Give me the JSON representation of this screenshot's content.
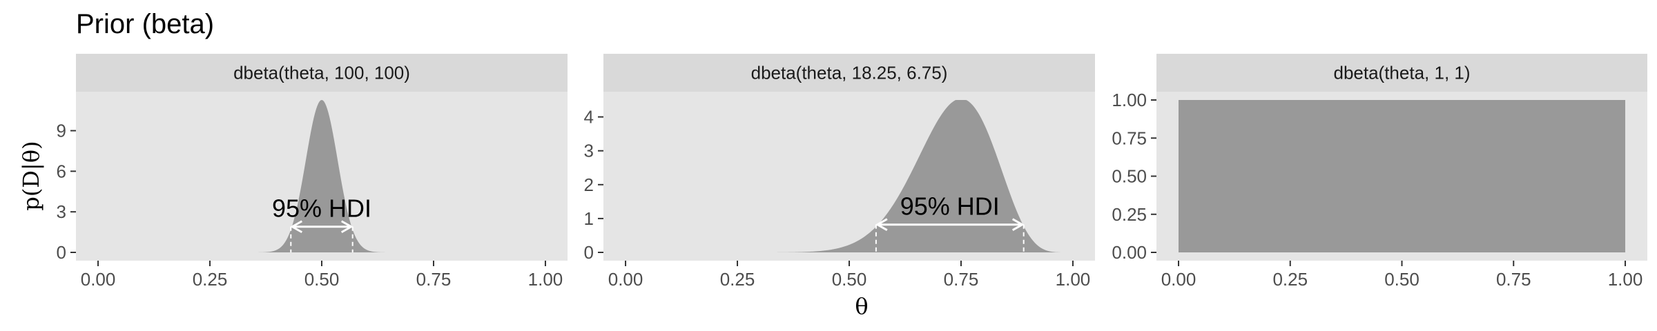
{
  "figure": {
    "title": "Prior (beta)",
    "xlabel": "θ",
    "ylabel": "p(D|θ)"
  },
  "colors": {
    "panel_background": "#e5e5e5",
    "strip_background": "#d9d9d9",
    "area_fill": "#999999",
    "hdi_line": "#ffffff",
    "tick_text": "#4d4d4d"
  },
  "chart_data": [
    {
      "type": "area",
      "title": "dbeta(theta, 100, 100)",
      "distribution": {
        "name": "beta",
        "a": 100,
        "b": 100
      },
      "xlim": [
        0,
        1
      ],
      "ylim": [
        0,
        11.27
      ],
      "x_ticks": [
        "0.00",
        "0.25",
        "0.50",
        "0.75",
        "1.00"
      ],
      "y_ticks": [
        {
          "value": 0,
          "label": "0"
        },
        {
          "value": 3,
          "label": "3"
        },
        {
          "value": 6,
          "label": "6"
        },
        {
          "value": 9,
          "label": "9"
        }
      ],
      "hdi": {
        "label": "95% HDI",
        "low": 0.431,
        "high": 0.569,
        "y": 1.9
      }
    },
    {
      "type": "area",
      "title": "dbeta(theta, 18.25, 6.75)",
      "distribution": {
        "name": "beta",
        "a": 18.25,
        "b": 6.75
      },
      "xlim": [
        0,
        1
      ],
      "ylim": [
        0,
        4.5
      ],
      "x_ticks": [
        "0.00",
        "0.25",
        "0.50",
        "0.75",
        "1.00"
      ],
      "y_ticks": [
        {
          "value": 0,
          "label": "0"
        },
        {
          "value": 1,
          "label": "1"
        },
        {
          "value": 2,
          "label": "2"
        },
        {
          "value": 3,
          "label": "3"
        },
        {
          "value": 4,
          "label": "4"
        }
      ],
      "hdi": {
        "label": "95% HDI",
        "low": 0.56,
        "high": 0.89,
        "y": 0.82
      }
    },
    {
      "type": "area",
      "title": "dbeta(theta, 1, 1)",
      "distribution": {
        "name": "beta",
        "a": 1,
        "b": 1
      },
      "xlim": [
        0,
        1
      ],
      "ylim": [
        0,
        1.0
      ],
      "x_ticks": [
        "0.00",
        "0.25",
        "0.50",
        "0.75",
        "1.00"
      ],
      "y_ticks": [
        {
          "value": 0,
          "label": "0.00"
        },
        {
          "value": 0.25,
          "label": "0.25"
        },
        {
          "value": 0.5,
          "label": "0.50"
        },
        {
          "value": 0.75,
          "label": "0.75"
        },
        {
          "value": 1,
          "label": "1.00"
        }
      ]
    }
  ]
}
